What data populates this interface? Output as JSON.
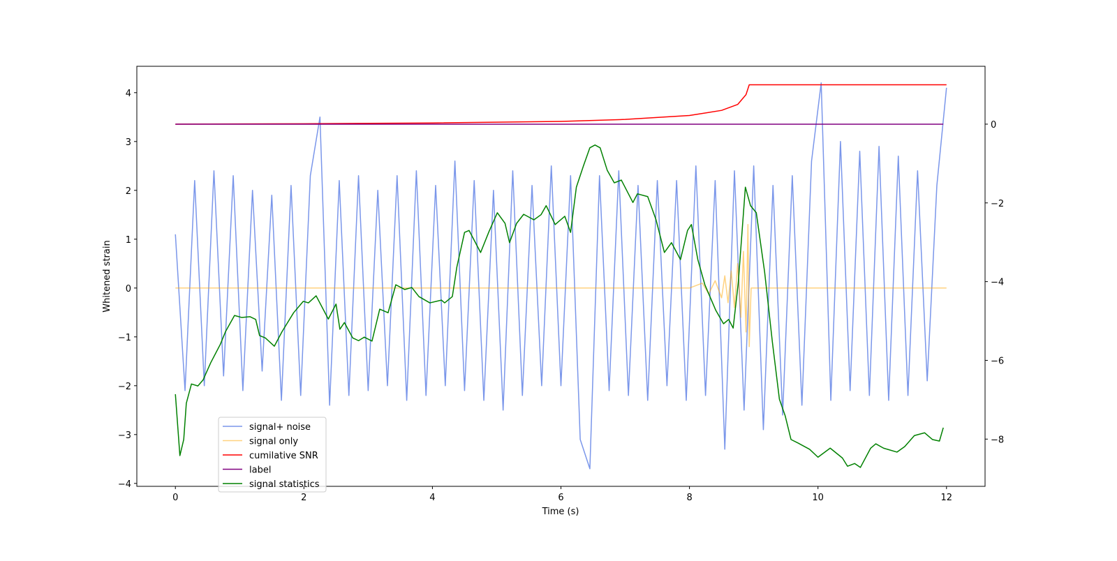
{
  "chart_data": {
    "type": "line",
    "x_label": "Time (s)",
    "y_label": "Whitened strain",
    "xlim": [
      -0.6,
      12.6
    ],
    "xticks": [
      0,
      2,
      4,
      6,
      8,
      10,
      12
    ],
    "ylim": [
      -4.06,
      4.54
    ],
    "yticks": [
      {
        "value": -4,
        "label": "−4"
      },
      {
        "value": -3,
        "label": "−3"
      },
      {
        "value": -2,
        "label": "−2"
      },
      {
        "value": -1,
        "label": "−1"
      },
      0,
      1,
      2,
      3,
      4
    ],
    "y2lim": [
      -9.2,
      1.47
    ],
    "y2ticks": [
      {
        "value": -8,
        "label": "−8"
      },
      {
        "value": -6,
        "label": "−6"
      },
      {
        "value": -4,
        "label": "−4"
      },
      {
        "value": -2,
        "label": "−2"
      },
      0
    ],
    "series": [
      {
        "name": "signal+ noise",
        "color": "#4169e1",
        "alpha": 0.7,
        "x": [
          0,
          0.15,
          0.3,
          0.45,
          0.6,
          0.75,
          0.9,
          1.05,
          1.2,
          1.35,
          1.5,
          1.65,
          1.8,
          1.95,
          2.1,
          2.25,
          2.4,
          2.55,
          2.7,
          2.85,
          3,
          3.15,
          3.3,
          3.45,
          3.6,
          3.75,
          3.9,
          4.05,
          4.2,
          4.35,
          4.5,
          4.65,
          4.8,
          4.95,
          5.1,
          5.25,
          5.4,
          5.55,
          5.7,
          5.85,
          6,
          6.15,
          6.3,
          6.45,
          6.6,
          6.75,
          6.9,
          7.05,
          7.2,
          7.35,
          7.5,
          7.65,
          7.8,
          7.95,
          8.1,
          8.25,
          8.4,
          8.55,
          8.7,
          8.85,
          9,
          9.15,
          9.3,
          9.45,
          9.6,
          9.75,
          9.9,
          10.05,
          10.2,
          10.35,
          10.5,
          10.65,
          10.8,
          10.95,
          11.1,
          11.25,
          11.4,
          11.55,
          11.7,
          11.85,
          12
        ],
        "values": [
          1.1,
          -2.1,
          2.2,
          -2.0,
          2.4,
          -1.8,
          2.3,
          -2.1,
          2.0,
          -1.7,
          1.9,
          -2.3,
          2.1,
          -2.2,
          2.3,
          3.5,
          -2.4,
          2.2,
          -2.2,
          2.3,
          -2.1,
          2.0,
          -2.0,
          2.3,
          -2.3,
          2.4,
          -2.2,
          2.1,
          -2.0,
          2.6,
          -2.1,
          2.2,
          -2.3,
          2.0,
          -2.5,
          2.4,
          -2.2,
          2.1,
          -2.0,
          2.5,
          -2.0,
          2.3,
          -3.1,
          -3.7,
          2.3,
          -2.1,
          2.4,
          -2.2,
          2.1,
          -2.3,
          2.2,
          -2.0,
          2.2,
          -2.3,
          2.5,
          -2.2,
          2.2,
          -3.3,
          2.4,
          -2.5,
          2.5,
          -2.9,
          2.1,
          -2.6,
          2.3,
          -2.4,
          2.6,
          4.2,
          -2.3,
          3.0,
          -2.1,
          2.8,
          -2.2,
          2.9,
          -2.3,
          2.7,
          -2.2,
          2.4,
          -1.9,
          2.1,
          4.1
        ]
      },
      {
        "name": "signal only",
        "color": "#ffa500",
        "alpha": 0.5,
        "x": [
          0,
          1,
          2,
          3,
          4,
          5,
          6,
          7,
          8,
          8.2,
          8.3,
          8.4,
          8.5,
          8.55,
          8.6,
          8.65,
          8.7,
          8.75,
          8.8,
          8.84,
          8.88,
          8.91,
          8.93,
          8.96,
          9,
          12
        ],
        "values": [
          0,
          0,
          0,
          0,
          0,
          0,
          0,
          0,
          0,
          0.1,
          -0.12,
          0.15,
          -0.2,
          0.25,
          -0.3,
          0.35,
          -0.4,
          0.5,
          -0.6,
          0.75,
          -0.9,
          1.3,
          -1.2,
          0,
          0,
          0
        ]
      },
      {
        "name": "cumilative SNR",
        "color": "#ff0000",
        "axis": "y2",
        "x": [
          0,
          2,
          4,
          6,
          7,
          8,
          8.5,
          8.75,
          8.88,
          8.93,
          12
        ],
        "values": [
          0,
          0.01,
          0.03,
          0.07,
          0.12,
          0.22,
          0.35,
          0.5,
          0.75,
          1.0,
          1.0
        ]
      },
      {
        "name": "label",
        "color": "#800080",
        "axis": "y2",
        "x": [
          0,
          11.95
        ],
        "values": [
          0,
          0
        ]
      },
      {
        "name": "signal statistics",
        "color": "#008000",
        "axis": "y2",
        "x": [
          0,
          0.07,
          0.13,
          0.17,
          0.25,
          0.35,
          0.43,
          0.55,
          0.7,
          0.78,
          0.92,
          1.03,
          1.16,
          1.25,
          1.31,
          1.4,
          1.54,
          1.66,
          1.84,
          1.99,
          2.07,
          2.19,
          2.38,
          2.5,
          2.56,
          2.63,
          2.76,
          2.85,
          2.94,
          3.06,
          3.18,
          3.31,
          3.43,
          3.57,
          3.68,
          3.79,
          3.96,
          4.14,
          4.19,
          4.31,
          4.38,
          4.5,
          4.57,
          4.75,
          4.88,
          5.01,
          5.13,
          5.2,
          5.31,
          5.42,
          5.58,
          5.69,
          5.77,
          5.91,
          6.06,
          6.15,
          6.24,
          6.35,
          6.45,
          6.53,
          6.61,
          6.72,
          6.83,
          6.94,
          7.12,
          7.19,
          7.35,
          7.48,
          7.61,
          7.72,
          7.86,
          7.97,
          8.03,
          8.13,
          8.24,
          8.41,
          8.53,
          8.61,
          8.68,
          8.76,
          8.87,
          8.95,
          9.04,
          9.17,
          9.29,
          9.4,
          9.49,
          9.58,
          9.69,
          9.87,
          10.0,
          10.19,
          10.38,
          10.46,
          10.57,
          10.66,
          10.82,
          10.9,
          11.02,
          11.23,
          11.35,
          11.5,
          11.66,
          11.78,
          11.89,
          11.95
        ],
        "values": [
          -6.86,
          -8.42,
          -8.01,
          -7.09,
          -6.6,
          -6.65,
          -6.5,
          -6.06,
          -5.59,
          -5.27,
          -4.86,
          -4.91,
          -4.89,
          -4.96,
          -5.37,
          -5.43,
          -5.64,
          -5.27,
          -4.79,
          -4.5,
          -4.54,
          -4.36,
          -4.95,
          -4.57,
          -5.21,
          -5.04,
          -5.43,
          -5.5,
          -5.41,
          -5.51,
          -4.7,
          -4.79,
          -4.08,
          -4.2,
          -4.15,
          -4.38,
          -4.54,
          -4.47,
          -4.54,
          -4.38,
          -3.63,
          -2.75,
          -2.7,
          -3.26,
          -2.73,
          -2.25,
          -2.52,
          -3.01,
          -2.52,
          -2.29,
          -2.43,
          -2.3,
          -2.07,
          -2.55,
          -2.34,
          -2.75,
          -1.6,
          -1.06,
          -0.6,
          -0.53,
          -0.6,
          -1.17,
          -1.49,
          -1.42,
          -1.99,
          -1.77,
          -1.84,
          -2.43,
          -3.26,
          -3.01,
          -3.44,
          -2.7,
          -2.55,
          -3.44,
          -4.08,
          -4.73,
          -5.07,
          -4.96,
          -5.18,
          -4.02,
          -1.6,
          -2.07,
          -2.25,
          -3.76,
          -5.53,
          -6.99,
          -7.41,
          -8.01,
          -8.1,
          -8.26,
          -8.46,
          -8.23,
          -8.48,
          -8.69,
          -8.62,
          -8.72,
          -8.23,
          -8.12,
          -8.23,
          -8.33,
          -8.19,
          -7.91,
          -7.84,
          -8.01,
          -8.05,
          -7.71
        ]
      }
    ]
  }
}
